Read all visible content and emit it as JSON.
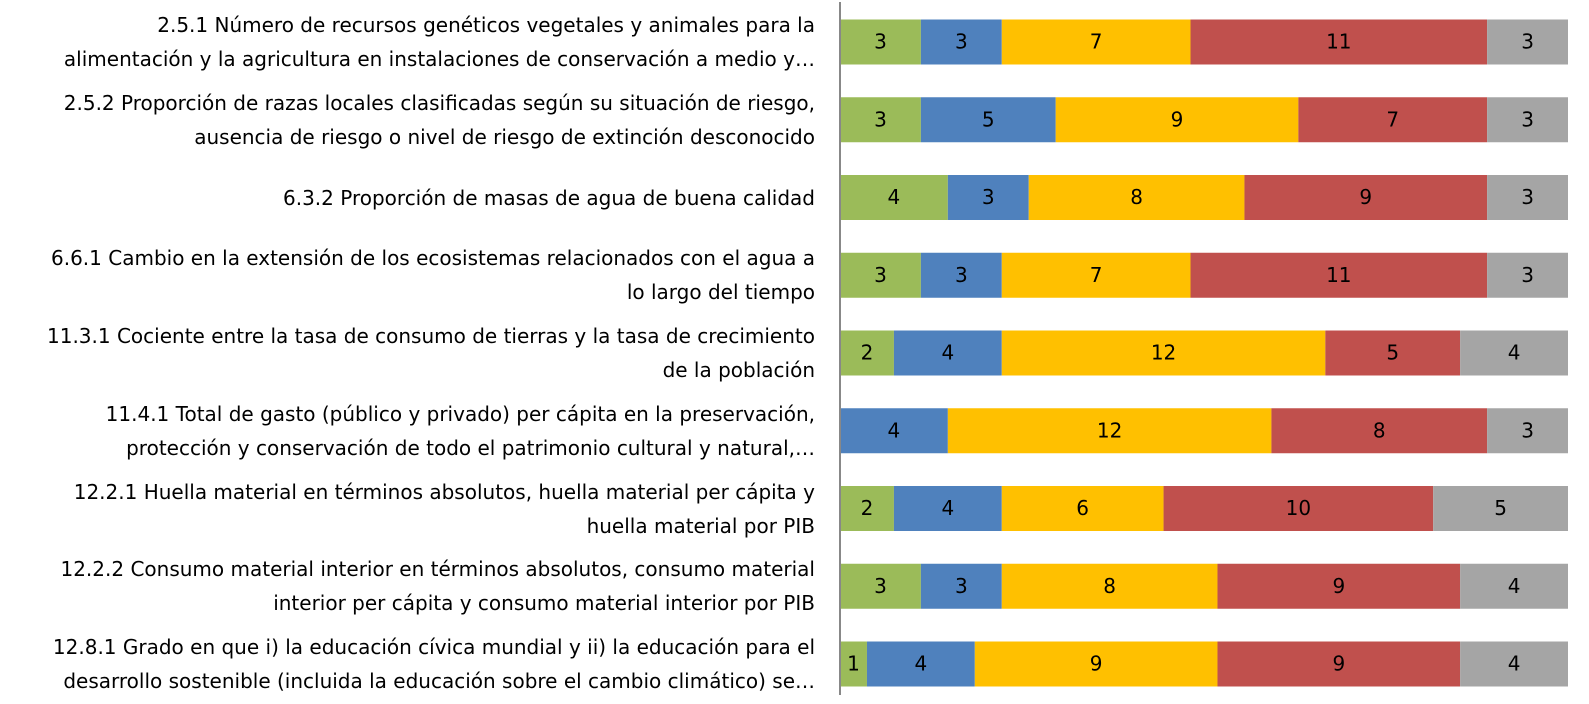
{
  "chart_data": {
    "type": "stacked_barh",
    "categories": [
      "2.5.1 Número de recursos genéticos vegetales y animales para la\nalimentación y la agricultura en instalaciones de conservación a medio y…",
      "2.5.2 Proporción de razas locales clasificadas según su situación de riesgo,\nausencia de riesgo o nivel de riesgo de extinción desconocido",
      "6.3.2 Proporción de masas de agua de buena calidad",
      "6.6.1 Cambio en la extensión de los ecosistemas relacionados con el agua a\nlo largo del tiempo",
      "11.3.1 Cociente entre la tasa de consumo de tierras y la tasa de crecimiento\nde la población",
      "11.4.1 Total de gasto (público y privado) per cápita en la preservación,\nprotección y conservación de todo el patrimonio cultural y natural,…",
      "12.2.1 Huella material en términos absolutos, huella material per cápita y\nhuella material por PIB",
      "12.2.2 Consumo material interior en términos absolutos, consumo material\ninterior per cápita y consumo material interior por PIB",
      "12.8.1 Grado en que i) la educación cívica mundial y ii) la educación para el\ndesarrollo sostenible (incluida la educación sobre el cambio climático) se…"
    ],
    "series": [
      {
        "color": "#9bbb59",
        "values": [
          3,
          3,
          4,
          3,
          2,
          null,
          2,
          3,
          1
        ]
      },
      {
        "color": "#4f81bd",
        "values": [
          3,
          5,
          3,
          3,
          4,
          4,
          4,
          3,
          4
        ]
      },
      {
        "color": "#ffc000",
        "values": [
          7,
          9,
          8,
          7,
          12,
          12,
          6,
          8,
          9
        ]
      },
      {
        "color": "#c0504d",
        "values": [
          11,
          7,
          9,
          11,
          5,
          8,
          10,
          9,
          9
        ]
      },
      {
        "color": "#a5a5a5",
        "values": [
          3,
          3,
          3,
          3,
          4,
          3,
          5,
          4,
          4
        ]
      }
    ],
    "xlim": [
      0,
      27
    ]
  }
}
